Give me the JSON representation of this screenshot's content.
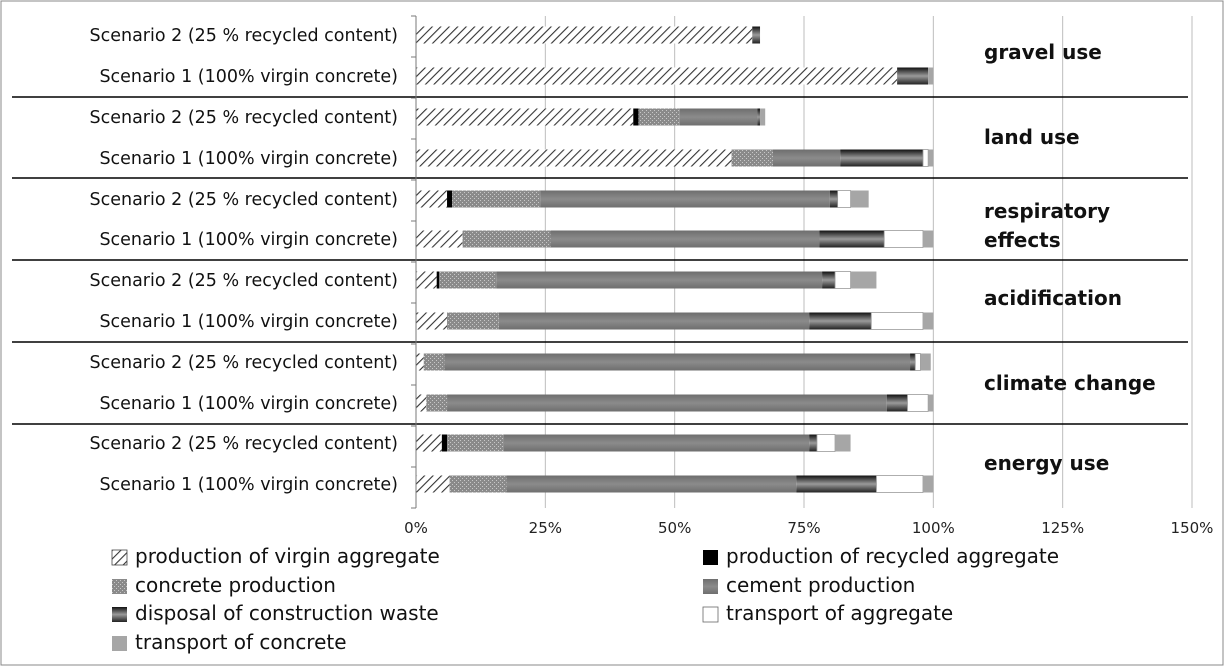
{
  "chart_data": {
    "type": "bar",
    "orientation": "horizontal",
    "stacked": true,
    "title": "",
    "xlabel": "",
    "ylabel": "",
    "xlim": [
      0,
      150
    ],
    "x_ticks": [
      "0%",
      "25%",
      "50%",
      "75%",
      "100%",
      "125%",
      "150%"
    ],
    "grid": true,
    "legend_position": "bottom",
    "categories": [
      "Scenario 2 (25 % recycled content)",
      "Scenario 1 (100% virgin concrete)",
      "Scenario 2 (25 % recycled content)",
      "Scenario 1 (100% virgin concrete)",
      "Scenario 2 (25 % recycled content)",
      "Scenario 1 (100% virgin concrete)",
      "Scenario 2 (25 % recycled content)",
      "Scenario 1 (100% virgin concrete)",
      "Scenario 2 (25 % recycled content)",
      "Scenario 1 (100% virgin concrete)",
      "Scenario 2 (25 % recycled content)",
      "Scenario 1 (100% virgin concrete)"
    ],
    "groups": [
      {
        "label_lines": [
          "gravel use"
        ]
      },
      {
        "label_lines": [
          "land use"
        ]
      },
      {
        "label_lines": [
          "respiratory",
          "effects"
        ]
      },
      {
        "label_lines": [
          "acidification"
        ]
      },
      {
        "label_lines": [
          "climate change"
        ]
      },
      {
        "label_lines": [
          "energy use"
        ]
      }
    ],
    "series": [
      {
        "name": "production of virgin aggregate",
        "pattern": "hatch",
        "color": "#ffffff",
        "values": [
          65,
          93,
          42,
          61,
          6,
          9,
          4,
          6,
          1.5,
          2,
          5,
          6.5
        ]
      },
      {
        "name": "production of recycled aggregate",
        "pattern": "solid",
        "color": "#000000",
        "values": [
          0,
          0,
          1,
          0,
          1,
          0,
          0.5,
          0,
          0,
          0,
          1,
          0
        ]
      },
      {
        "name": "concrete production",
        "pattern": "speckle",
        "color": "#8a8a8a",
        "values": [
          0,
          0,
          8,
          8,
          17,
          17,
          11,
          10,
          4,
          4,
          11,
          11
        ]
      },
      {
        "name": "cement production",
        "pattern": "solid",
        "color": "#7b7b7b",
        "values": [
          0,
          0,
          15,
          13,
          56,
          52,
          63,
          60,
          90,
          85,
          59,
          56
        ]
      },
      {
        "name": "disposal of construction waste",
        "pattern": "gradient",
        "color": "#3a3a3a",
        "values": [
          1.5,
          6,
          0.5,
          16,
          1.5,
          12.5,
          2.5,
          12,
          1,
          4,
          1.5,
          15.5
        ]
      },
      {
        "name": "transport of aggregate",
        "pattern": "solid",
        "color": "#ffffff",
        "values": [
          0,
          0,
          0,
          1,
          2.5,
          7.5,
          3,
          10,
          1,
          4,
          3.5,
          9
        ]
      },
      {
        "name": "transport of concrete",
        "pattern": "solid",
        "color": "#a6a6a6",
        "values": [
          0,
          1,
          1,
          1,
          3.5,
          2,
          5,
          2,
          2,
          1,
          3,
          2
        ]
      }
    ]
  }
}
